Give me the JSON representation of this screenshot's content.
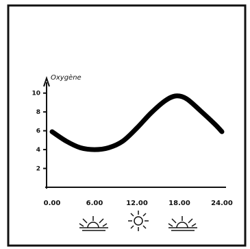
{
  "chart_data": {
    "type": "line",
    "title": "",
    "xlabel": "",
    "ylabel": "Oxygène",
    "xlim": [
      0,
      24
    ],
    "ylim": [
      0,
      11
    ],
    "x_tick_labels": [
      "0.00",
      "6.00",
      "12.00",
      "18.00",
      "24.00"
    ],
    "y_tick_labels": [
      "2",
      "4",
      "6",
      "8",
      "10"
    ],
    "y_ticks": [
      2,
      4,
      6,
      8,
      10
    ],
    "grid": false,
    "series": [
      {
        "x": [
          0,
          2,
          4,
          6,
          8,
          10,
          12,
          14,
          16,
          17.5,
          19,
          21,
          23,
          24
        ],
        "values": [
          5.9,
          4.9,
          4.2,
          4.0,
          4.2,
          4.9,
          6.3,
          7.9,
          9.2,
          9.7,
          9.4,
          8.1,
          6.7,
          5.9
        ]
      }
    ],
    "x_icons": [
      "moon-icon",
      "sunrise-icon",
      "sun-icon",
      "sunset-icon",
      "moon-icon"
    ]
  }
}
